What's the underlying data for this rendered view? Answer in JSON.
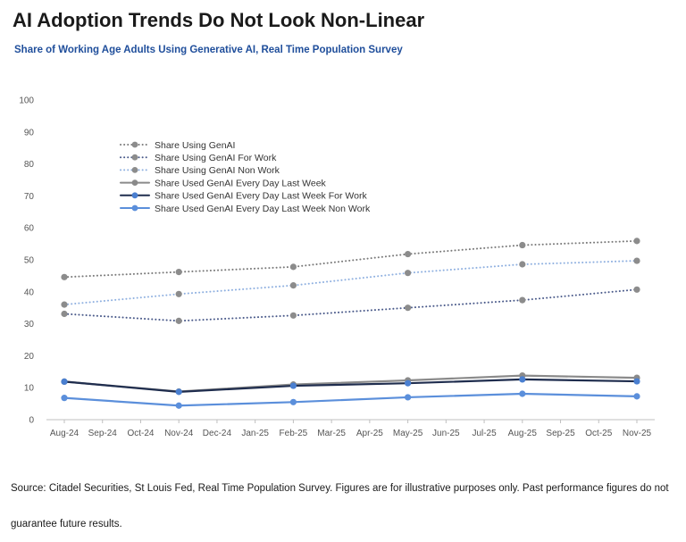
{
  "header": {
    "title": "AI Adoption Trends Do Not Look Non-Linear",
    "subtitle": "Share of Working Age Adults Using Generative AI, Real Time Population Survey"
  },
  "footer": {
    "source": "Source: Citadel Securities, St Louis Fed, Real Time Population Survey. Figures are for illustrative purposes only. Past performance figures do not guarantee future results."
  },
  "chart_data": {
    "type": "line",
    "categories": [
      "Aug-24",
      "Sep-24",
      "Oct-24",
      "Nov-24",
      "Dec-24",
      "Jan-25",
      "Feb-25",
      "Mar-25",
      "Apr-25",
      "May-25",
      "Jun-25",
      "Jul-25",
      "Aug-25",
      "Sep-25",
      "Oct-25",
      "Nov-25"
    ],
    "ylim": [
      0,
      100
    ],
    "yticks": [
      0,
      10,
      20,
      30,
      40,
      50,
      60,
      70,
      80,
      90,
      100
    ],
    "grid": false,
    "legend_position": "top-left",
    "series": [
      {
        "name": "Share Using GenAI",
        "style": "dotted",
        "color": "#7a7a7a",
        "marker_color": "#8c8c8c",
        "x": [
          "Aug-24",
          "Nov-24",
          "Feb-25",
          "May-25",
          "Aug-25",
          "Nov-25"
        ],
        "values": [
          44.6,
          46.2,
          47.8,
          51.8,
          54.6,
          55.9
        ]
      },
      {
        "name": "Share Using GenAI For Work",
        "style": "dotted",
        "color": "#4a5a8a",
        "marker_color": "#8c8c8c",
        "x": [
          "Aug-24",
          "Nov-24",
          "Feb-25",
          "May-25",
          "Aug-25",
          "Nov-25"
        ],
        "values": [
          33.1,
          30.9,
          32.6,
          35.0,
          37.4,
          40.7
        ]
      },
      {
        "name": "Share Using GenAI Non Work",
        "style": "dotted",
        "color": "#8fb0e0",
        "marker_color": "#8c8c8c",
        "x": [
          "Aug-24",
          "Nov-24",
          "Feb-25",
          "May-25",
          "Aug-25",
          "Nov-25"
        ],
        "values": [
          36.0,
          39.3,
          42.0,
          45.9,
          48.6,
          49.7
        ]
      },
      {
        "name": "Share Used GenAI Every Day Last Week",
        "style": "solid",
        "color": "#8a8a8a",
        "marker_color": "#8a8a8a",
        "x": [
          "Aug-24",
          "Nov-24",
          "Feb-25",
          "May-25",
          "Aug-25",
          "Nov-25"
        ],
        "values": [
          11.9,
          8.8,
          11.0,
          12.3,
          13.8,
          13.1
        ]
      },
      {
        "name": "Share Used GenAI Every Day Last Week For Work",
        "style": "solid",
        "color": "#1f2d4e",
        "marker_color": "#4a7fd0",
        "x": [
          "Aug-24",
          "Nov-24",
          "Feb-25",
          "May-25",
          "Aug-25",
          "Nov-25"
        ],
        "values": [
          11.9,
          8.7,
          10.6,
          11.4,
          12.6,
          12.0
        ]
      },
      {
        "name": "Share Used GenAI Every Day Last Week Non Work",
        "style": "solid",
        "color": "#5b8fdb",
        "marker_color": "#5b8fdb",
        "x": [
          "Aug-24",
          "Nov-24",
          "Feb-25",
          "May-25",
          "Aug-25",
          "Nov-25"
        ],
        "values": [
          6.8,
          4.4,
          5.5,
          7.0,
          8.1,
          7.3
        ]
      }
    ]
  }
}
